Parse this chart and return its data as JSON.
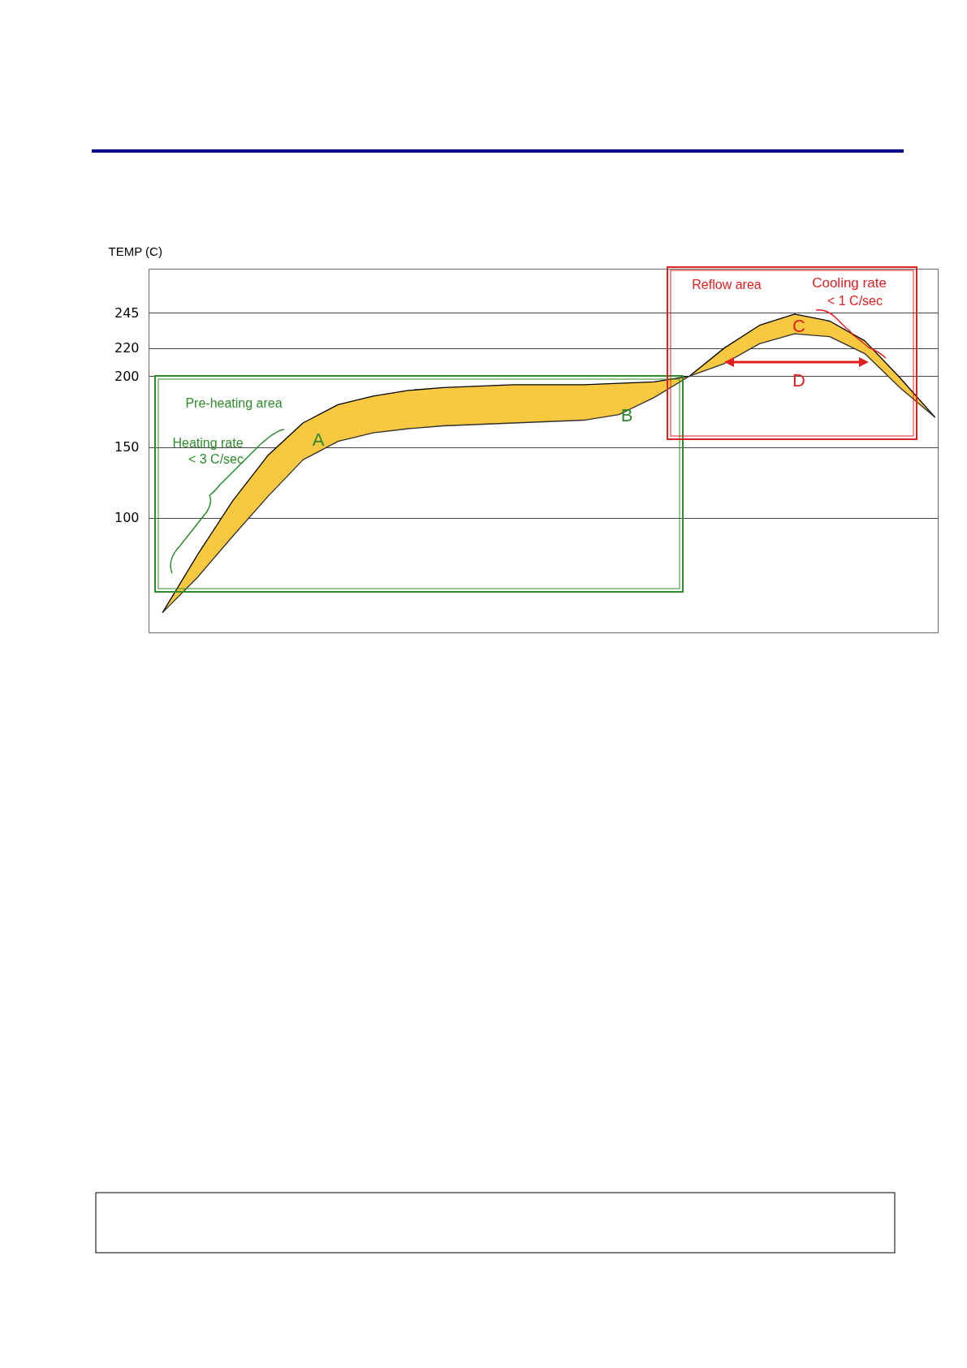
{
  "chart_data": {
    "type": "line",
    "ylabel": "TEMP (C)",
    "categories": [
      null,
      null,
      null,
      null,
      null,
      null,
      null,
      null,
      null,
      null,
      null,
      null,
      null,
      null,
      null,
      null,
      null,
      null,
      null,
      null,
      null,
      null,
      null
    ],
    "series": [
      {
        "color": "#000000",
        "values": [
          33,
          74,
          112,
          144,
          167,
          180,
          186,
          190,
          192,
          193,
          194,
          194,
          194,
          195,
          196,
          200,
          220,
          236,
          244,
          239,
          225,
          199,
          171
        ],
        "lower": [
          33,
          58,
          87,
          115,
          141,
          154,
          160,
          163,
          165,
          166,
          167,
          168,
          169,
          173,
          185,
          200,
          209,
          223,
          230,
          228,
          216,
          192,
          171
        ],
        "upper": [
          33,
          74,
          112,
          144,
          167,
          180,
          186,
          190,
          192,
          193,
          194,
          194,
          194,
          195,
          196,
          200,
          220,
          236,
          244,
          239,
          225,
          199,
          171
        ]
      },
      {
        "color": "#303030",
        "values": [
          33,
          58,
          87,
          115,
          141,
          154,
          160,
          163,
          165,
          166,
          167,
          168,
          169,
          173,
          185,
          200,
          209,
          223,
          230,
          228,
          216,
          192,
          171
        ]
      }
    ],
    "ylim": [
      19,
      276
    ],
    "yticks": [
      100,
      150,
      200,
      220,
      245
    ],
    "grid": "y",
    "tick_labels": "y",
    "annotations": [
      "Reflow area",
      "Cooling rate",
      "< 1 C/sec",
      "Pre-heating area",
      "Heating rate",
      "< 3 C/sec",
      "A",
      "B",
      "C",
      "D"
    ]
  }
}
